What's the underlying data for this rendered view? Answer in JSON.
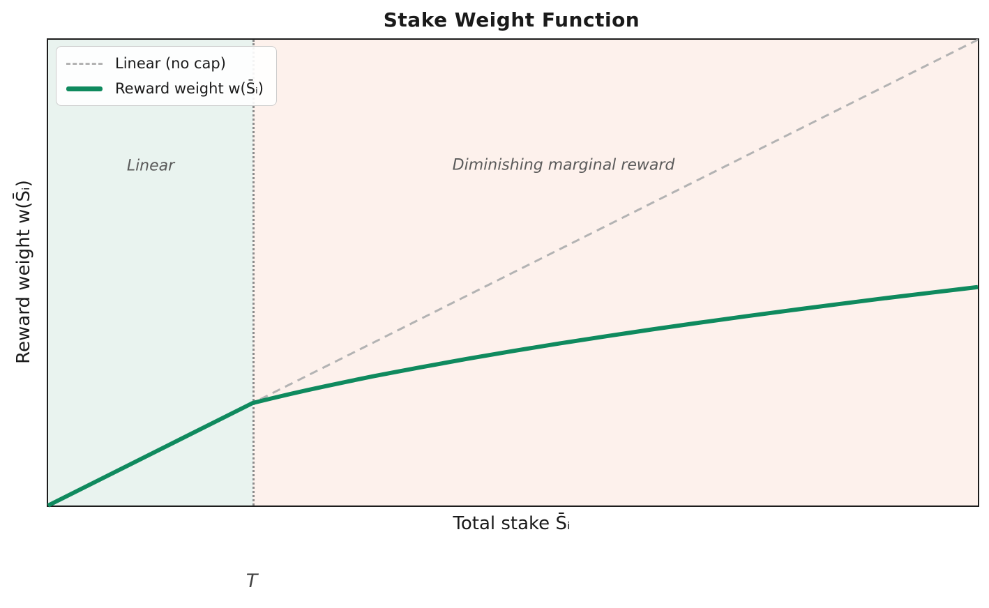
{
  "title": "Stake Weight Function",
  "axes": {
    "x_label": "Total stake S̄ᵢ",
    "y_label": "Reward weight w(S̄ᵢ)",
    "threshold_label": "T"
  },
  "regions": {
    "linear_label": "Linear",
    "diminishing_label": "Diminishing marginal reward"
  },
  "legend": {
    "items": [
      {
        "label": "Linear (no cap)",
        "style": "dashed",
        "color": "#b3b3b3"
      },
      {
        "label": "Reward weight w(S̄ᵢ)",
        "style": "solid",
        "color": "#0f8a5e"
      }
    ]
  },
  "colors": {
    "green_line": "#0f8a5e",
    "dashed_line": "#b3b3b3",
    "linear_region_fill": "#e9f3ef",
    "diminishing_region_fill": "#fdf1ec",
    "threshold_line": "#8c8c8c",
    "region_label_text": "#5a5a5a",
    "title_text": "#1a1a1a",
    "spine": "#1c1c1c"
  },
  "chart_data": {
    "type": "line",
    "title": "Stake Weight Function",
    "xlabel": "Total stake S̄ᵢ",
    "ylabel": "Reward weight w(S̄ᵢ)",
    "xlim": [
      0,
      10
    ],
    "ylim": [
      0,
      10
    ],
    "threshold_T": 2.2,
    "grid": false,
    "legend_position": "upper left",
    "annotations": [
      "Linear",
      "Diminishing marginal reward",
      "T"
    ],
    "regions": [
      {
        "label": "Linear",
        "x_range": [
          0,
          2.2
        ]
      },
      {
        "label": "Diminishing marginal reward",
        "x_range": [
          2.2,
          10
        ]
      }
    ],
    "series": [
      {
        "name": "Linear (no cap)",
        "style": "dashed",
        "color": "#b3b3b3",
        "width": 3,
        "dash": "12,8",
        "points": [
          [
            0,
            0
          ],
          [
            10,
            10
          ]
        ]
      },
      {
        "name": "Reward weight w(S̄ᵢ)",
        "style": "solid",
        "color": "#0f8a5e",
        "width": 6,
        "points": [
          [
            0,
            0
          ],
          [
            2.2,
            2.2
          ],
          [
            2.4,
            2.298
          ],
          [
            2.6,
            2.392
          ],
          [
            2.8,
            2.482
          ],
          [
            3.0,
            2.569
          ],
          [
            3.25,
            2.674
          ],
          [
            3.5,
            2.775
          ],
          [
            3.75,
            2.872
          ],
          [
            4.0,
            2.966
          ],
          [
            4.5,
            3.146
          ],
          [
            5.0,
            3.317
          ],
          [
            5.5,
            3.479
          ],
          [
            6.0,
            3.633
          ],
          [
            6.5,
            3.782
          ],
          [
            7.0,
            3.924
          ],
          [
            7.5,
            4.062
          ],
          [
            8.0,
            4.195
          ],
          [
            8.5,
            4.324
          ],
          [
            9.0,
            4.45
          ],
          [
            9.5,
            4.571
          ],
          [
            10,
            4.69
          ]
        ]
      }
    ]
  }
}
